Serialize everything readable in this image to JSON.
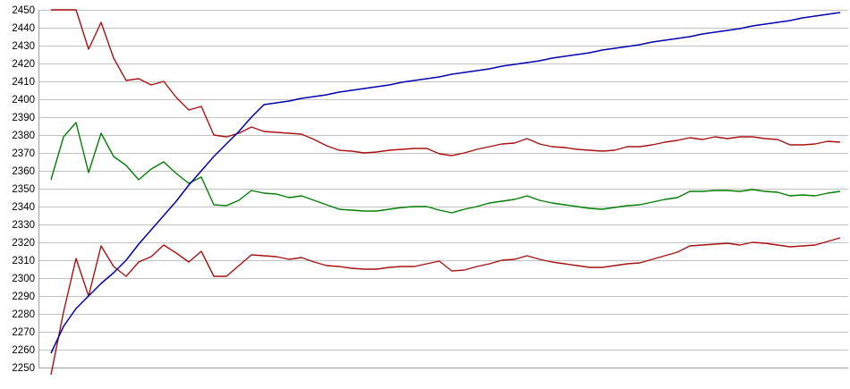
{
  "chart_data": {
    "type": "line",
    "title": "",
    "xlabel": "",
    "ylabel": "",
    "x_axis": "unlabeled, 64 evenly spaced points",
    "x_tick_labels": [],
    "ylim": [
      2245,
      2455
    ],
    "yticks": [
      2450,
      2440,
      2430,
      2420,
      2410,
      2400,
      2390,
      2380,
      2370,
      2360,
      2350,
      2340,
      2330,
      2320,
      2310,
      2300,
      2290,
      2280,
      2270,
      2260,
      2250
    ],
    "grid": "horizontal",
    "legend": "none",
    "colors": {
      "red_band": "#aa1111",
      "green_mid": "#008000",
      "blue_cumulative": "#0000b0",
      "gridline": "#c3c3c3",
      "axis": "#a0a0a0",
      "label": "#000000"
    },
    "series": [
      {
        "name": "upper-red-band",
        "color": "#aa1111",
        "values": [
          2450,
          2450,
          2450,
          2428,
          2443,
          2423,
          2410.5,
          2411.5,
          2408,
          2410,
          2401,
          2394,
          2396,
          2380,
          2379,
          2381,
          2384.5,
          2382,
          2381.5,
          2381,
          2380.5,
          2377.5,
          2374,
          2371.5,
          2371,
          2370,
          2370.5,
          2371.5,
          2372,
          2372.5,
          2372.5,
          2369.5,
          2368.5,
          2370,
          2372,
          2373.5,
          2375,
          2375.5,
          2378,
          2375,
          2373.5,
          2373,
          2372,
          2371.5,
          2371,
          2371.5,
          2373.5,
          2373.5,
          2374.5,
          2376,
          2377,
          2378.5,
          2377.5,
          2379,
          2378,
          2379,
          2379,
          2378,
          2377.5,
          2374.5,
          2374.5,
          2375,
          2376.5,
          2376
        ]
      },
      {
        "name": "green-mid-line",
        "color": "#008000",
        "values": [
          2355,
          2379,
          2387,
          2359,
          2381,
          2368,
          2363,
          2355,
          2361,
          2365,
          2358.5,
          2353,
          2356.5,
          2341,
          2340.5,
          2343.5,
          2349,
          2347.5,
          2347,
          2345,
          2346,
          2343.5,
          2341,
          2338.5,
          2338,
          2337.5,
          2337.5,
          2338.5,
          2339.5,
          2340,
          2340,
          2338,
          2336.5,
          2338.5,
          2340,
          2342,
          2343,
          2344,
          2346,
          2343.5,
          2342,
          2341,
          2340,
          2339,
          2338.5,
          2339.5,
          2340.5,
          2341,
          2342.5,
          2344,
          2345,
          2348.5,
          2348.5,
          2349,
          2349,
          2348.5,
          2349.5,
          2348.5,
          2348,
          2346,
          2346.5,
          2346,
          2347.5,
          2348.5
        ]
      },
      {
        "name": "lower-red-band",
        "color": "#aa1111",
        "values": [
          2246,
          2281,
          2311,
          2290,
          2318,
          2306.5,
          2301,
          2309,
          2312,
          2318.5,
          2314,
          2309,
          2315,
          2301,
          2301,
          2307,
          2313,
          2312.5,
          2312,
          2310.5,
          2311.5,
          2309,
          2307,
          2306.5,
          2305.5,
          2305,
          2305,
          2306,
          2306.5,
          2306.5,
          2308,
          2309.5,
          2304,
          2304.5,
          2306.5,
          2308,
          2310,
          2310.5,
          2312.5,
          2310.5,
          2309,
          2308,
          2307,
          2306,
          2306,
          2307,
          2308,
          2308.5,
          2310.5,
          2312.5,
          2314.5,
          2318,
          2318.5,
          2319,
          2319.5,
          2318.5,
          2320,
          2319.5,
          2318.5,
          2317.5,
          2318,
          2318.5,
          2320.5,
          2322.5
        ]
      },
      {
        "name": "blue-cumulative-line",
        "color": "#0000b0",
        "values": [
          2258,
          2273,
          2283,
          2290,
          2297,
          2303,
          2310,
          2319,
          2327,
          2335,
          2343,
          2352,
          2360,
          2368,
          2375,
          2382,
          2390,
          2397,
          2398,
          2399,
          2400.5,
          2401.5,
          2402.5,
          2404,
          2405,
          2406,
          2407,
          2408,
          2409.5,
          2410.5,
          2411.5,
          2412.5,
          2414,
          2415,
          2416,
          2417,
          2418.5,
          2419.5,
          2420.5,
          2421.5,
          2423,
          2424,
          2425,
          2426,
          2427.5,
          2428.5,
          2429.5,
          2430.5,
          2432,
          2433,
          2434,
          2435,
          2436.5,
          2437.5,
          2438.5,
          2439.5,
          2441,
          2442,
          2443,
          2444,
          2445.5,
          2446.5,
          2447.5,
          2448.5
        ]
      }
    ]
  }
}
